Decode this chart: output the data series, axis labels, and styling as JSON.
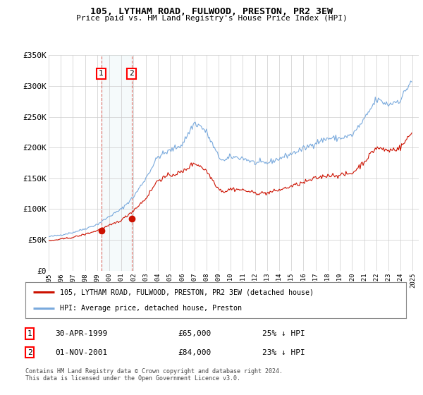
{
  "title": "105, LYTHAM ROAD, FULWOOD, PRESTON, PR2 3EW",
  "subtitle": "Price paid vs. HM Land Registry's House Price Index (HPI)",
  "ylim": [
    0,
    350000
  ],
  "yticks": [
    0,
    50000,
    100000,
    150000,
    200000,
    250000,
    300000,
    350000
  ],
  "ytick_labels": [
    "£0",
    "£50K",
    "£100K",
    "£150K",
    "£200K",
    "£250K",
    "£300K",
    "£350K"
  ],
  "xlim_start": 1995.0,
  "xlim_end": 2025.5,
  "background_color": "#ffffff",
  "grid_color": "#cccccc",
  "hpi_color": "#7aaadd",
  "price_color": "#cc1100",
  "transaction1_date": "30-APR-1999",
  "transaction1_price": 65000,
  "transaction1_hpi_price": 86700,
  "transaction1_pct": "25%",
  "transaction1_year": 1999.33,
  "transaction2_date": "01-NOV-2001",
  "transaction2_price": 84000,
  "transaction2_hpi_price": 109000,
  "transaction2_pct": "23%",
  "transaction2_year": 2001.83,
  "legend_label_price": "105, LYTHAM ROAD, FULWOOD, PRESTON, PR2 3EW (detached house)",
  "legend_label_hpi": "HPI: Average price, detached house, Preston",
  "footer": "Contains HM Land Registry data © Crown copyright and database right 2024.\nThis data is licensed under the Open Government Licence v3.0."
}
